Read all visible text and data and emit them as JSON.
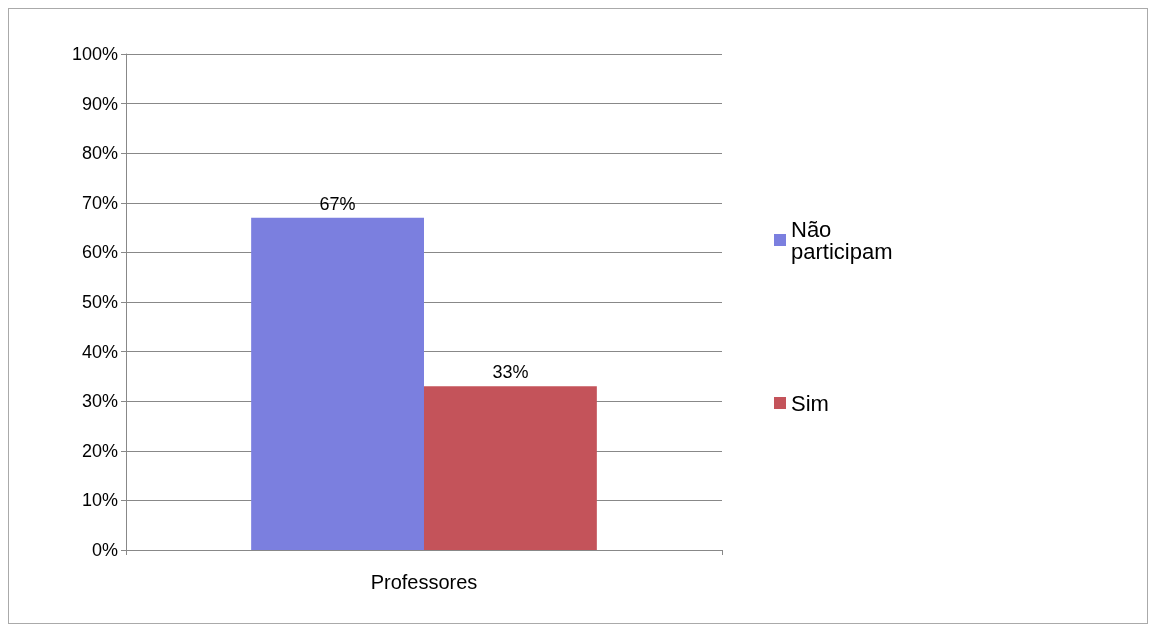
{
  "chart_data": {
    "type": "bar",
    "categories": [
      "Professores"
    ],
    "series": [
      {
        "name": "Não participam",
        "color": "#7b7fdf",
        "values": [
          67
        ],
        "value_labels": [
          "67%"
        ]
      },
      {
        "name": "Sim",
        "color": "#c4535a",
        "values": [
          33
        ],
        "value_labels": [
          "33%"
        ]
      }
    ],
    "ylim": [
      0,
      100
    ],
    "yticks": [
      {
        "value": 0,
        "label": "0%"
      },
      {
        "value": 10,
        "label": "10%"
      },
      {
        "value": 20,
        "label": "20%"
      },
      {
        "value": 30,
        "label": "30%"
      },
      {
        "value": 40,
        "label": "40%"
      },
      {
        "value": 50,
        "label": "50%"
      },
      {
        "value": 60,
        "label": "60%"
      },
      {
        "value": 70,
        "label": "70%"
      },
      {
        "value": 80,
        "label": "80%"
      },
      {
        "value": 90,
        "label": "90%"
      },
      {
        "value": 100,
        "label": "100%"
      }
    ],
    "grid": "y",
    "legend": "right"
  }
}
